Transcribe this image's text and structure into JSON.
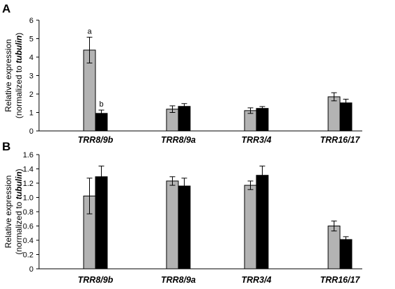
{
  "chart_data": [
    {
      "type": "bar",
      "panel": "A",
      "categories": [
        "TRR8/9b",
        "TRR8/9a",
        "TRR3/4",
        "TRR16/17"
      ],
      "ylabel_line1": "Relative expression",
      "ylabel_line2_prefix": "(normalized to ",
      "ylabel_line2_italic": "tubulin",
      "ylabel_line2_suffix": ")",
      "ylim": [
        0,
        6
      ],
      "yticks": [
        0,
        1,
        2,
        3,
        4,
        5,
        6
      ],
      "ytick_labels": [
        "0",
        "1",
        "2",
        "3",
        "4",
        "5",
        "6"
      ],
      "series": [
        {
          "color": "#b3b3b3",
          "values": [
            4.38,
            1.18,
            1.1,
            1.85
          ],
          "errors": [
            0.7,
            0.18,
            0.15,
            0.22
          ]
        },
        {
          "color": "#000000",
          "values": [
            0.95,
            1.33,
            1.22,
            1.52
          ],
          "errors": [
            0.18,
            0.15,
            0.1,
            0.2
          ]
        }
      ],
      "annotations": [
        {
          "text": "a",
          "category": 0,
          "series": 0
        },
        {
          "text": "b",
          "category": 0,
          "series": 1
        }
      ],
      "grid": false
    },
    {
      "type": "bar",
      "panel": "B",
      "categories": [
        "TRR8/9b",
        "TRR8/9a",
        "TRR3/4",
        "TRR16/17"
      ],
      "ylabel_line1": "Relative expression",
      "ylabel_line2_prefix": "(normalized to ",
      "ylabel_line2_italic": "tubulin",
      "ylabel_line2_suffix": ")",
      "ylim": [
        0,
        1.6
      ],
      "yticks": [
        0,
        0.2,
        0.4,
        0.6,
        0.8,
        1.0,
        1.2,
        1.4,
        1.6
      ],
      "ytick_labels": [
        "0",
        "0.2",
        "0.4",
        "0.6",
        "0.8",
        "1.0",
        "1.2",
        "1.4",
        "1.6"
      ],
      "series": [
        {
          "color": "#b3b3b3",
          "values": [
            1.02,
            1.23,
            1.17,
            0.6
          ],
          "errors": [
            0.25,
            0.06,
            0.06,
            0.07
          ]
        },
        {
          "color": "#000000",
          "values": [
            1.29,
            1.16,
            1.31,
            0.41
          ],
          "errors": [
            0.15,
            0.11,
            0.13,
            0.04
          ]
        }
      ],
      "annotations": [],
      "grid": false
    }
  ]
}
